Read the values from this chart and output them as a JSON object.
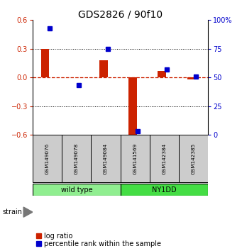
{
  "title": "GDS2826 / 90f10",
  "samples": [
    "GSM149076",
    "GSM149078",
    "GSM149084",
    "GSM141569",
    "GSM142384",
    "GSM142385"
  ],
  "log_ratio": [
    0.3,
    0.0,
    0.18,
    -0.62,
    0.07,
    -0.02
  ],
  "percentile_rank": [
    93,
    43,
    75,
    3,
    57,
    51
  ],
  "group_configs": [
    {
      "indices": [
        0,
        1,
        2
      ],
      "label": "wild type",
      "color": "#90EE90"
    },
    {
      "indices": [
        3,
        4,
        5
      ],
      "label": "NY1DD",
      "color": "#44DD44"
    }
  ],
  "strain_label": "strain",
  "ylim_left": [
    -0.6,
    0.6
  ],
  "yticks_left": [
    -0.6,
    -0.3,
    0.0,
    0.3,
    0.6
  ],
  "ylim_right": [
    0,
    100
  ],
  "yticks_right": [
    0,
    25,
    50,
    75,
    100
  ],
  "bar_color_red": "#CC2200",
  "bar_color_blue": "#0000CC",
  "zero_line_color": "#CC2200",
  "grid_line_color": "#000000",
  "legend_red_label": "log ratio",
  "legend_blue_label": "percentile rank within the sample",
  "title_fontsize": 10,
  "tick_fontsize": 7,
  "legend_fontsize": 7
}
